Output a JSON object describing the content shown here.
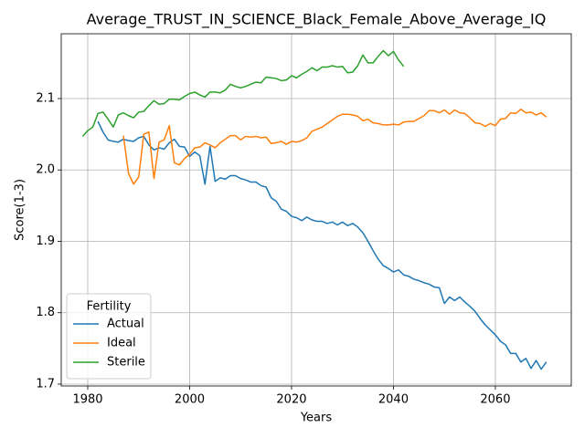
{
  "chart_data": {
    "type": "line",
    "title": "Average_TRUST_IN_SCIENCE_Black_Female_Above_Average_IQ",
    "x_label": "Years",
    "y_label": "Score(1-3)",
    "legend_title": "Fertility",
    "legend_position": "lower left",
    "grid": true,
    "xlim": [
      1974.8,
      2074.9
    ],
    "ylim": [
      1.6974,
      2.1907
    ],
    "xticks": [
      1980,
      2000,
      2020,
      2040,
      2060
    ],
    "yticks": [
      1.7,
      1.8,
      1.9,
      {
        "value": 2,
        "label": "2.0"
      },
      2.1
    ],
    "x": [
      1979,
      1980,
      1981,
      1982,
      1983,
      1984,
      1985,
      1986,
      1987,
      1988,
      1989,
      1990,
      1991,
      1992,
      1993,
      1994,
      1995,
      1996,
      1997,
      1998,
      1999,
      2000,
      2001,
      2002,
      2003,
      2004,
      2005,
      2006,
      2007,
      2008,
      2009,
      2010,
      2011,
      2012,
      2013,
      2014,
      2015,
      2016,
      2017,
      2018,
      2019,
      2020,
      2021,
      2022,
      2023,
      2024,
      2025,
      2026,
      2027,
      2028,
      2029,
      2030,
      2031,
      2032,
      2033,
      2034,
      2035,
      2036,
      2037,
      2038,
      2039,
      2040,
      2041,
      2042,
      2043,
      2044,
      2045,
      2046,
      2047,
      2048,
      2049,
      2050,
      2051,
      2052,
      2053,
      2054,
      2055,
      2056,
      2057,
      2058,
      2059,
      2060,
      2061,
      2062,
      2063,
      2064,
      2065,
      2066,
      2067,
      2068,
      2069,
      2070
    ],
    "series": [
      {
        "name": "Actual",
        "color": "#1f77b4",
        "values": [
          null,
          null,
          null,
          2.068,
          2.053,
          2.042,
          2.04,
          2.039,
          2.043,
          2.041,
          2.04,
          2.045,
          2.047,
          2.035,
          2.028,
          2.031,
          2.029,
          2.038,
          2.043,
          2.033,
          2.032,
          2.019,
          2.025,
          2.02,
          1.98,
          2.033,
          1.984,
          1.989,
          1.987,
          1.992,
          1.992,
          1.988,
          1.986,
          1.983,
          1.983,
          1.978,
          1.976,
          1.961,
          1.956,
          1.945,
          1.942,
          1.935,
          1.933,
          1.929,
          1.934,
          1.93,
          1.928,
          1.928,
          1.925,
          1.927,
          1.923,
          1.927,
          1.922,
          1.925,
          1.92,
          1.912,
          1.9,
          1.887,
          1.875,
          1.866,
          1.862,
          1.857,
          1.86,
          1.853,
          1.851,
          1.847,
          1.845,
          1.842,
          1.84,
          1.836,
          1.835,
          1.813,
          1.822,
          1.817,
          1.822,
          1.815,
          1.809,
          1.802,
          1.792,
          1.783,
          1.776,
          1.769,
          1.76,
          1.755,
          1.743,
          1.743,
          1.731,
          1.736,
          1.722,
          1.733,
          1.721,
          1.731
        ]
      },
      {
        "name": "Ideal",
        "color": "#ff7f0e",
        "values": [
          null,
          null,
          null,
          null,
          null,
          null,
          null,
          null,
          2.048,
          1.995,
          1.98,
          1.99,
          2.05,
          2.053,
          1.988,
          2.039,
          2.042,
          2.062,
          2.01,
          2.007,
          2.016,
          2.022,
          2.031,
          2.032,
          2.038,
          2.035,
          2.031,
          2.038,
          2.043,
          2.048,
          2.048,
          2.042,
          2.047,
          2.046,
          2.047,
          2.045,
          2.046,
          2.037,
          2.038,
          2.04,
          2.036,
          2.04,
          2.039,
          2.041,
          2.045,
          2.054,
          2.057,
          2.06,
          2.065,
          2.07,
          2.075,
          2.078,
          2.078,
          2.077,
          2.075,
          2.069,
          2.071,
          2.066,
          2.065,
          2.063,
          2.063,
          2.064,
          2.063,
          2.067,
          2.068,
          2.068,
          2.072,
          2.076,
          2.083,
          2.083,
          2.08,
          2.084,
          2.078,
          2.084,
          2.08,
          2.079,
          2.073,
          2.066,
          2.065,
          2.061,
          2.065,
          2.062,
          2.071,
          2.072,
          2.08,
          2.079,
          2.085,
          2.08,
          2.081,
          2.077,
          2.08,
          2.074
        ]
      },
      {
        "name": "Sterile",
        "color": "#2ca02c",
        "values": [
          2.047,
          2.055,
          2.06,
          2.079,
          2.081,
          2.071,
          2.06,
          2.077,
          2.08,
          2.076,
          2.073,
          2.081,
          2.082,
          2.09,
          2.097,
          2.092,
          2.093,
          2.099,
          2.099,
          2.098,
          2.103,
          2.107,
          2.109,
          2.105,
          2.102,
          2.109,
          2.109,
          2.108,
          2.112,
          2.12,
          2.117,
          2.115,
          2.117,
          2.12,
          2.123,
          2.122,
          2.13,
          2.129,
          2.128,
          2.125,
          2.126,
          2.132,
          2.129,
          2.134,
          2.138,
          2.143,
          2.139,
          2.144,
          2.144,
          2.146,
          2.144,
          2.145,
          2.136,
          2.137,
          2.146,
          2.161,
          2.15,
          2.15,
          2.159,
          2.167,
          2.16,
          2.166,
          2.154,
          2.145,
          null,
          null,
          null,
          null,
          null,
          null,
          null,
          null,
          null,
          null,
          null,
          null,
          null,
          null,
          null,
          null,
          null,
          null,
          null,
          null,
          null,
          null,
          null,
          null,
          null,
          null,
          null,
          null
        ]
      }
    ]
  }
}
